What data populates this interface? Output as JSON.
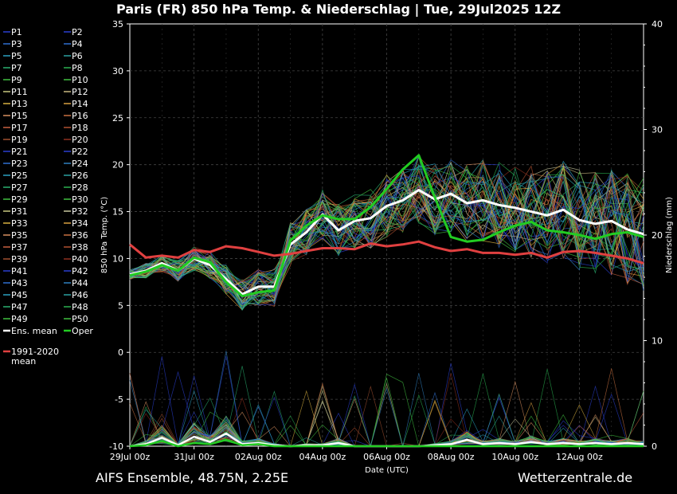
{
  "header": {
    "title": "Paris  (FR)  850 hPa Temp. & Niederschlag | Tue, 29Jul2025 12Z"
  },
  "footer": {
    "left": "AIFS Ensemble, 48.75N, 2.25E",
    "right": "Wetterzentrale.de"
  },
  "colors": {
    "background": "#000000",
    "ens_mean": "#ffffff",
    "oper": "#22cc22",
    "climate": "#e04040",
    "grid": "#444444"
  },
  "chart_data": {
    "type": "line",
    "title": "Paris  (FR)  850 hPa Temp. & Niederschlag | Tue, 29Jul2025 12Z",
    "xlabel": "Date (UTC)",
    "ylabel": "850 hPa Temp. (°C)",
    "ylabel_right": "Niederschlag (mm)",
    "xlim": [
      0,
      16
    ],
    "ylim": [
      -10,
      35
    ],
    "ylim_right": [
      0,
      40
    ],
    "grid": true,
    "legend_position": "left",
    "x_tick_labels": [
      {
        "x": 0,
        "label": "29Jul 00z"
      },
      {
        "x": 2,
        "label": "31Jul 00z"
      },
      {
        "x": 4,
        "label": "02Aug 00z"
      },
      {
        "x": 6,
        "label": "04Aug 00z"
      },
      {
        "x": 8,
        "label": "06Aug 00z"
      },
      {
        "x": 10,
        "label": "08Aug 00z"
      },
      {
        "x": 12,
        "label": "10Aug 00z"
      },
      {
        "x": 14,
        "label": "12Aug 00z"
      }
    ],
    "y_ticks": [
      -10,
      -5,
      0,
      5,
      10,
      15,
      20,
      25,
      30,
      35
    ],
    "y_ticks_right": [
      0,
      10,
      20,
      30,
      40
    ],
    "legend": [
      {
        "label": "P1",
        "color": "#2a3fd0"
      },
      {
        "label": "P2",
        "color": "#2a3fd0"
      },
      {
        "label": "P3",
        "color": "#2f6fd0"
      },
      {
        "label": "P4",
        "color": "#2f6fd0"
      },
      {
        "label": "P5",
        "color": "#2aa0c0"
      },
      {
        "label": "P6",
        "color": "#2aa0a0"
      },
      {
        "label": "P7",
        "color": "#2ab070"
      },
      {
        "label": "P8",
        "color": "#2ab050"
      },
      {
        "label": "P9",
        "color": "#40c040"
      },
      {
        "label": "P10",
        "color": "#40c040"
      },
      {
        "label": "P11",
        "color": "#c8c880"
      },
      {
        "label": "P12",
        "color": "#c8b880"
      },
      {
        "label": "P13",
        "color": "#d8b040"
      },
      {
        "label": "P14",
        "color": "#d8a040"
      },
      {
        "label": "P15",
        "color": "#d89060"
      },
      {
        "label": "P16",
        "color": "#c87040"
      },
      {
        "label": "P17",
        "color": "#c86040"
      },
      {
        "label": "P18",
        "color": "#b05030"
      },
      {
        "label": "P19",
        "color": "#a05030"
      },
      {
        "label": "P20",
        "color": "#903020"
      },
      {
        "label": "P21",
        "color": "#2a3fd0"
      },
      {
        "label": "P22",
        "color": "#2a3fd0"
      },
      {
        "label": "P23",
        "color": "#2f6fd0"
      },
      {
        "label": "P24",
        "color": "#2f80c0"
      },
      {
        "label": "P25",
        "color": "#2aa0c0"
      },
      {
        "label": "P26",
        "color": "#2aa0a0"
      },
      {
        "label": "P27",
        "color": "#2ab070"
      },
      {
        "label": "P28",
        "color": "#2ab050"
      },
      {
        "label": "P29",
        "color": "#40c040"
      },
      {
        "label": "P30",
        "color": "#40c040"
      },
      {
        "label": "P31",
        "color": "#c8c880"
      },
      {
        "label": "P32",
        "color": "#c8c8a0"
      },
      {
        "label": "P33",
        "color": "#d8b040"
      },
      {
        "label": "P34",
        "color": "#d8a040"
      },
      {
        "label": "P35",
        "color": "#d89060"
      },
      {
        "label": "P36",
        "color": "#c87040"
      },
      {
        "label": "P37",
        "color": "#c86040"
      },
      {
        "label": "P38",
        "color": "#b05030"
      },
      {
        "label": "P39",
        "color": "#a05030"
      },
      {
        "label": "P40",
        "color": "#903020"
      },
      {
        "label": "P41",
        "color": "#2a3fd0"
      },
      {
        "label": "P42",
        "color": "#2a3fd0"
      },
      {
        "label": "P43",
        "color": "#2f6fd0"
      },
      {
        "label": "P44",
        "color": "#2f80c0"
      },
      {
        "label": "P45",
        "color": "#2aa0c0"
      },
      {
        "label": "P46",
        "color": "#2aa0a0"
      },
      {
        "label": "P47",
        "color": "#2ab070"
      },
      {
        "label": "P48",
        "color": "#2ab050"
      },
      {
        "label": "P49",
        "color": "#40c040"
      },
      {
        "label": "P50",
        "color": "#40c040"
      },
      {
        "label": "Ens. mean",
        "color": "#ffffff"
      },
      {
        "label": "Oper",
        "color": "#22cc22"
      },
      {
        "label": "1991-2020\nmean",
        "color": "#e04040"
      }
    ],
    "series": [
      {
        "name": "Ens. mean",
        "color": "#ffffff",
        "axis": "left",
        "x": [
          0,
          0.5,
          1,
          1.5,
          2,
          2.5,
          3,
          3.5,
          4,
          4.5,
          5,
          5.5,
          6,
          6.5,
          7,
          7.5,
          8,
          8.5,
          9,
          9.5,
          10,
          10.5,
          11,
          11.5,
          12,
          12.5,
          13,
          13.5,
          14,
          14.5,
          15,
          15.5,
          16
        ],
        "y": [
          8.3,
          8.7,
          9.5,
          8.7,
          10.0,
          9.3,
          7.8,
          6.2,
          7.0,
          7.0,
          11.5,
          12.8,
          14.7,
          13.0,
          14.0,
          14.3,
          15.6,
          16.2,
          17.3,
          16.3,
          16.9,
          15.9,
          16.2,
          15.7,
          15.4,
          15.0,
          14.6,
          15.2,
          14.1,
          13.7,
          14.0,
          13.1,
          12.6
        ]
      },
      {
        "name": "Oper",
        "color": "#22cc22",
        "axis": "left",
        "x": [
          0,
          0.5,
          1,
          1.5,
          2,
          2.5,
          3,
          3.5,
          4,
          4.5,
          5,
          5.5,
          6,
          6.5,
          7,
          7.5,
          8,
          8.5,
          9,
          9.5,
          10,
          10.5,
          11,
          11.5,
          12,
          12.5,
          13,
          13.5,
          14,
          14.5,
          15,
          15.5,
          16
        ],
        "y": [
          8.2,
          8.6,
          9.3,
          8.7,
          10.1,
          9.6,
          7.5,
          6.0,
          6.4,
          6.6,
          11.9,
          13.5,
          14.6,
          14.2,
          14.2,
          15.5,
          17.4,
          19.5,
          21.0,
          16.5,
          12.3,
          11.8,
          12.0,
          12.8,
          13.5,
          13.9,
          13.0,
          12.8,
          12.5,
          12.1,
          12.6,
          12.8,
          12.3
        ]
      },
      {
        "name": "1991-2020 mean",
        "color": "#e04040",
        "axis": "left",
        "x": [
          0,
          0.5,
          1,
          1.5,
          2,
          2.5,
          3,
          3.5,
          4,
          4.5,
          5,
          5.5,
          6,
          6.5,
          7,
          7.5,
          8,
          8.5,
          9,
          9.5,
          10,
          10.5,
          11,
          11.5,
          12,
          12.5,
          13,
          13.5,
          14,
          14.5,
          15,
          15.5,
          16
        ],
        "y": [
          11.5,
          10.1,
          10.3,
          10.1,
          10.9,
          10.7,
          11.3,
          11.1,
          10.7,
          10.3,
          10.5,
          10.8,
          11.1,
          11.1,
          11.0,
          11.6,
          11.3,
          11.5,
          11.8,
          11.2,
          10.8,
          11.0,
          10.6,
          10.6,
          10.4,
          10.6,
          10.1,
          10.7,
          10.8,
          10.6,
          10.3,
          10.0,
          9.5
        ]
      },
      {
        "name": "Ens. mean",
        "color": "#ffffff",
        "axis": "right",
        "x": [
          0,
          0.5,
          1,
          1.5,
          2,
          2.5,
          3,
          3.5,
          4,
          4.5,
          5,
          5.5,
          6,
          6.5,
          7,
          7.5,
          8,
          8.5,
          9,
          9.5,
          10,
          10.5,
          11,
          11.5,
          12,
          12.5,
          13,
          13.5,
          14,
          14.5,
          15,
          15.5,
          16
        ],
        "y": [
          0,
          0.2,
          0.8,
          0.1,
          0.9,
          0.4,
          1.2,
          0.2,
          0.3,
          0.1,
          0,
          0.1,
          0.1,
          0.3,
          0,
          0,
          0,
          0,
          0,
          0.1,
          0.2,
          0.6,
          0.2,
          0.3,
          0.2,
          0.4,
          0.2,
          0.3,
          0.2,
          0.3,
          0.2,
          0.3,
          0.2
        ]
      },
      {
        "name": "Oper",
        "color": "#22cc22",
        "axis": "right",
        "x": [
          0,
          0.5,
          1,
          1.5,
          2,
          2.5,
          3,
          3.5,
          4,
          4.5,
          5,
          5.5,
          6,
          6.5,
          7,
          7.5,
          8,
          8.5,
          9,
          9.5,
          10,
          10.5,
          11,
          11.5,
          12,
          12.5,
          13,
          13.5,
          14,
          14.5,
          15,
          15.5,
          16
        ],
        "y": [
          0,
          0.1,
          0.5,
          0,
          0.3,
          0.2,
          0.6,
          0.1,
          0.2,
          0,
          0,
          0,
          0,
          0,
          0,
          0,
          0,
          0,
          0,
          0,
          0,
          0,
          0,
          0,
          0,
          0,
          0,
          0,
          0,
          0,
          0,
          0,
          0
        ]
      }
    ]
  }
}
